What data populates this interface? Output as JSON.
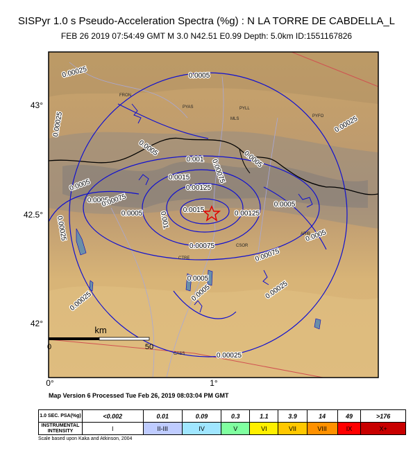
{
  "header": {
    "title": "SISPyr 1.0 s Pseudo-Acceleration Spectra (%g) : N LA TORRE DE CABDELLA_L",
    "subtitle": "FEB 26 2019 07:54:49  GMT   M 3.0   N42.51 E0.99   Depth: 5.0km   ID:1551167826"
  },
  "map": {
    "lat_labels": [
      "43°",
      "42.5°",
      "42°"
    ],
    "lon_labels": [
      "0°",
      "1°"
    ],
    "contour_labels": [
      "0.00025",
      "0.0005",
      "0.00025",
      "0.00025",
      "0.0005",
      "0.001",
      "0.00075",
      "0.0015",
      "0.00125",
      "0.0005",
      "0.0005",
      "0.0005",
      "0.00075",
      "0.0005",
      "0.001",
      "0.0015",
      "0.00125",
      "0.0005",
      "0.0005",
      "0.00075",
      "0.00075",
      "0.0005",
      "0.0005",
      "0.00025",
      "0.00025",
      "0.00025",
      "0.00025"
    ],
    "places": [
      "FRON",
      "PYAS",
      "PYLL",
      "MLS",
      "PYFO",
      "CSOR",
      "CTRE",
      "ARIB",
      "CASS"
    ],
    "scale": {
      "unit": "km",
      "start": "0",
      "end": "50"
    }
  },
  "footer": {
    "version": "Map Version 6 Processed Tue Feb 26, 2019 08:03:04 PM GMT",
    "note": "Scale based upon Kaka and Atkinson, 2004"
  },
  "legend": {
    "psa_label": "1.0 SEC. PSA(%g)",
    "intensity_label": "INSTRUMENTAL INTENSITY",
    "psa": [
      "<0.002",
      "0.01",
      "0.09",
      "0.3",
      "1.1",
      "3.9",
      "14",
      "49",
      ">176"
    ],
    "intensity": [
      "I",
      "II-III",
      "IV",
      "V",
      "VI",
      "VII",
      "VIII",
      "IX",
      "X+"
    ],
    "colors": [
      "#ffffff",
      "#bfccff",
      "#a0e6ff",
      "#80ffa0",
      "#fff000",
      "#ffc800",
      "#ff9100",
      "#ff0000",
      "#c80000"
    ]
  }
}
